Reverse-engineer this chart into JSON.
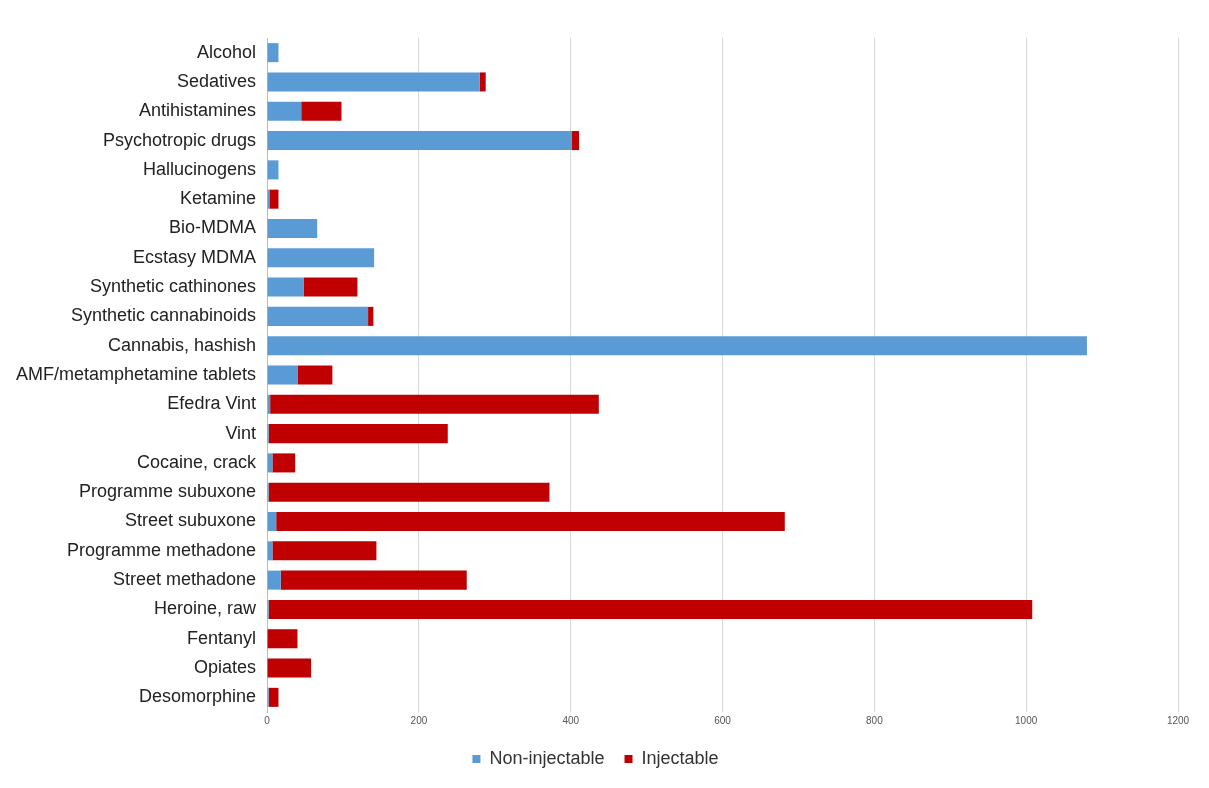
{
  "chart_data": {
    "type": "bar",
    "orientation": "horizontal",
    "stacked": true,
    "categories": [
      "Alcohol",
      "Sedatives",
      "Antihistamines",
      "Psychotropic drugs",
      "Hallucinogens",
      "Ketamine",
      "Bio-MDMA",
      "Ecstasy MDMA",
      "Synthetic cathinones",
      "Synthetic cannabinoids",
      "Cannabis, hashish",
      "AMF/metamphetamine tablets",
      "Efedra Vint",
      "Vint",
      "Cocaine, crack",
      "Programme subuxone",
      "Street subuxone",
      "Programme methadone",
      "Street methadone",
      "Heroine, raw",
      "Fentanyl",
      "Opiates",
      "Desomorphine"
    ],
    "series": [
      {
        "name": "Non-injectable",
        "color": "#5b9bd5",
        "values": [
          15,
          280,
          45,
          401,
          15,
          3,
          66,
          141,
          48,
          133,
          1080,
          40,
          4,
          2,
          7,
          2,
          12,
          7,
          18,
          2,
          null,
          null,
          2
        ]
      },
      {
        "name": "Injectable",
        "color": "#c00000",
        "values": [
          0,
          8,
          53,
          10,
          0,
          12,
          0,
          0,
          71,
          7,
          0,
          46,
          433,
          236,
          30,
          370,
          670,
          137,
          245,
          1006,
          40,
          58,
          13
        ]
      }
    ],
    "xlim": [
      0,
      1200
    ],
    "xticks": [
      0,
      200,
      400,
      600,
      800,
      1000,
      1200
    ],
    "grid": "x",
    "legend": "bottom"
  }
}
